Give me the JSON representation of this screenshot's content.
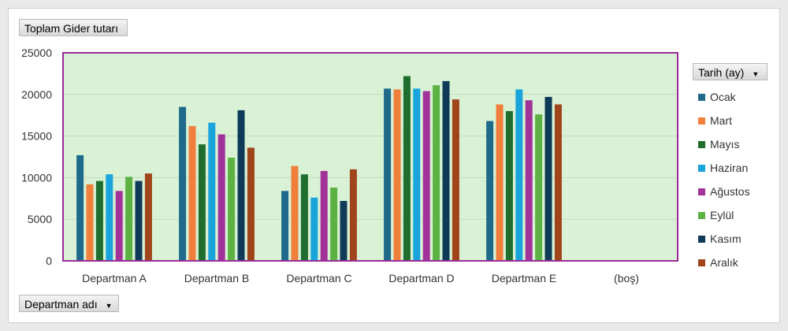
{
  "pivot": {
    "value_field": "Toplam Gider tutarı",
    "axis_field": "Departman adı",
    "legend_field": "Tarih (ay)"
  },
  "colors": [
    "#1f6a8a",
    "#ef7f3a",
    "#1f6e2f",
    "#19a4dc",
    "#a1329a",
    "#5bb243",
    "#0f3b58",
    "#a0441b"
  ],
  "chart_data": {
    "type": "bar",
    "title": "",
    "xlabel": "",
    "ylabel": "",
    "ylim": [
      0,
      25000
    ],
    "yticks": [
      0,
      5000,
      10000,
      15000,
      20000,
      25000
    ],
    "grid": true,
    "legend_position": "right",
    "categories": [
      "Departman A",
      "Departman B",
      "Departman C",
      "Departman D",
      "Departman E",
      "(boş)"
    ],
    "series": [
      {
        "name": "Ocak",
        "values": [
          12700,
          18500,
          8400,
          20700,
          16800,
          null
        ]
      },
      {
        "name": "Mart",
        "values": [
          9200,
          16200,
          11400,
          20600,
          18800,
          null
        ]
      },
      {
        "name": "Mayıs",
        "values": [
          9600,
          14000,
          10400,
          22200,
          18000,
          null
        ]
      },
      {
        "name": "Haziran",
        "values": [
          10400,
          16600,
          7600,
          20700,
          20600,
          null
        ]
      },
      {
        "name": "Ağustos",
        "values": [
          8400,
          15200,
          10800,
          20400,
          19300,
          null
        ]
      },
      {
        "name": "Eylül",
        "values": [
          10100,
          12400,
          8800,
          21100,
          17600,
          null
        ]
      },
      {
        "name": "Kasım",
        "values": [
          9600,
          18100,
          7200,
          21600,
          19700,
          null
        ]
      },
      {
        "name": "Aralık",
        "values": [
          10500,
          13600,
          11000,
          19400,
          18800,
          null
        ]
      }
    ]
  }
}
